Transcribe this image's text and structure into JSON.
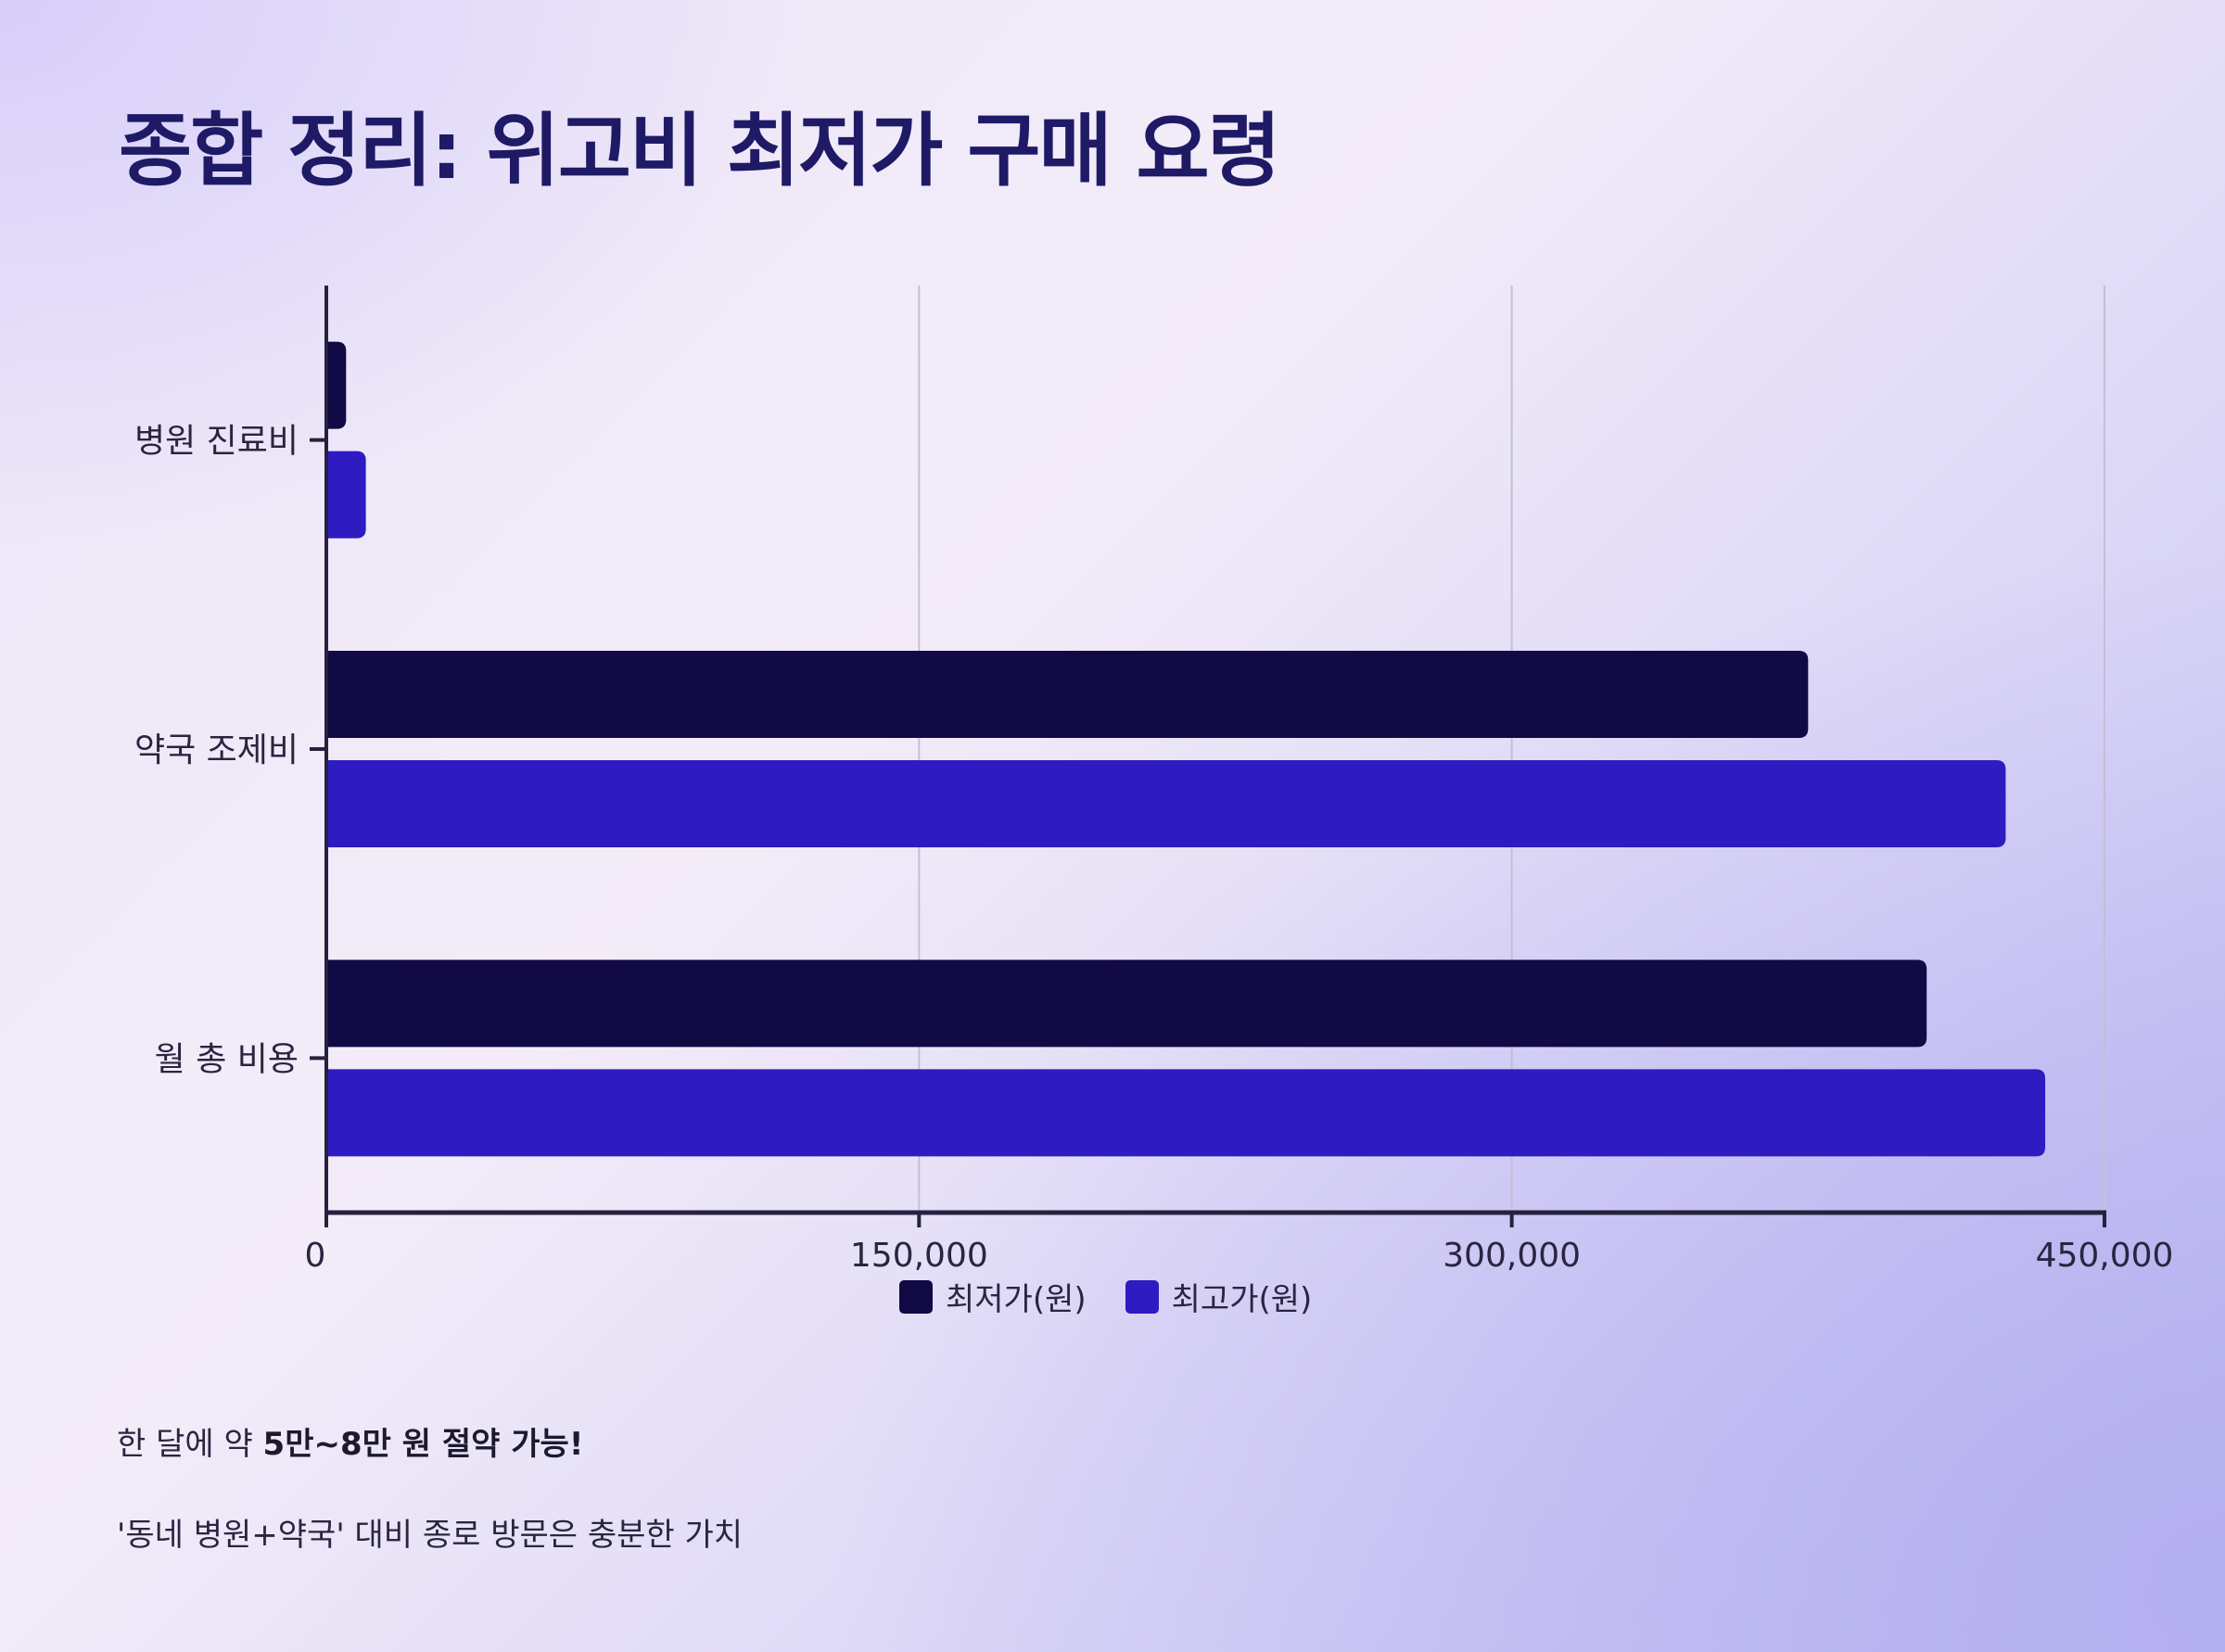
{
  "title": "종합 정리: 위고비 최저가 구매 요령",
  "chart_data": {
    "type": "bar",
    "orientation": "horizontal",
    "categories": [
      "병원 진료비",
      "약국 조제비",
      "월 총 비용"
    ],
    "series": [
      {
        "name": "최저가(원)",
        "values": [
          5000,
          375000,
          405000
        ],
        "color": "#110a45"
      },
      {
        "name": "최고가(원)",
        "values": [
          10000,
          425000,
          435000
        ],
        "color": "#2e1bc2"
      }
    ],
    "xlim": [
      0,
      450000
    ],
    "xticks": [
      0,
      150000,
      300000,
      450000
    ],
    "xtick_labels": [
      "0",
      "150,000",
      "300,000",
      "450,000"
    ],
    "grid": true,
    "legend": "bottom"
  },
  "notes": {
    "line1_prefix": "한 달에 약 ",
    "line1_bold": "5만~8만 원 절약 가능!",
    "line2": "'동네 병원+약국' 대비 종로 방문은 충분한 가치"
  }
}
